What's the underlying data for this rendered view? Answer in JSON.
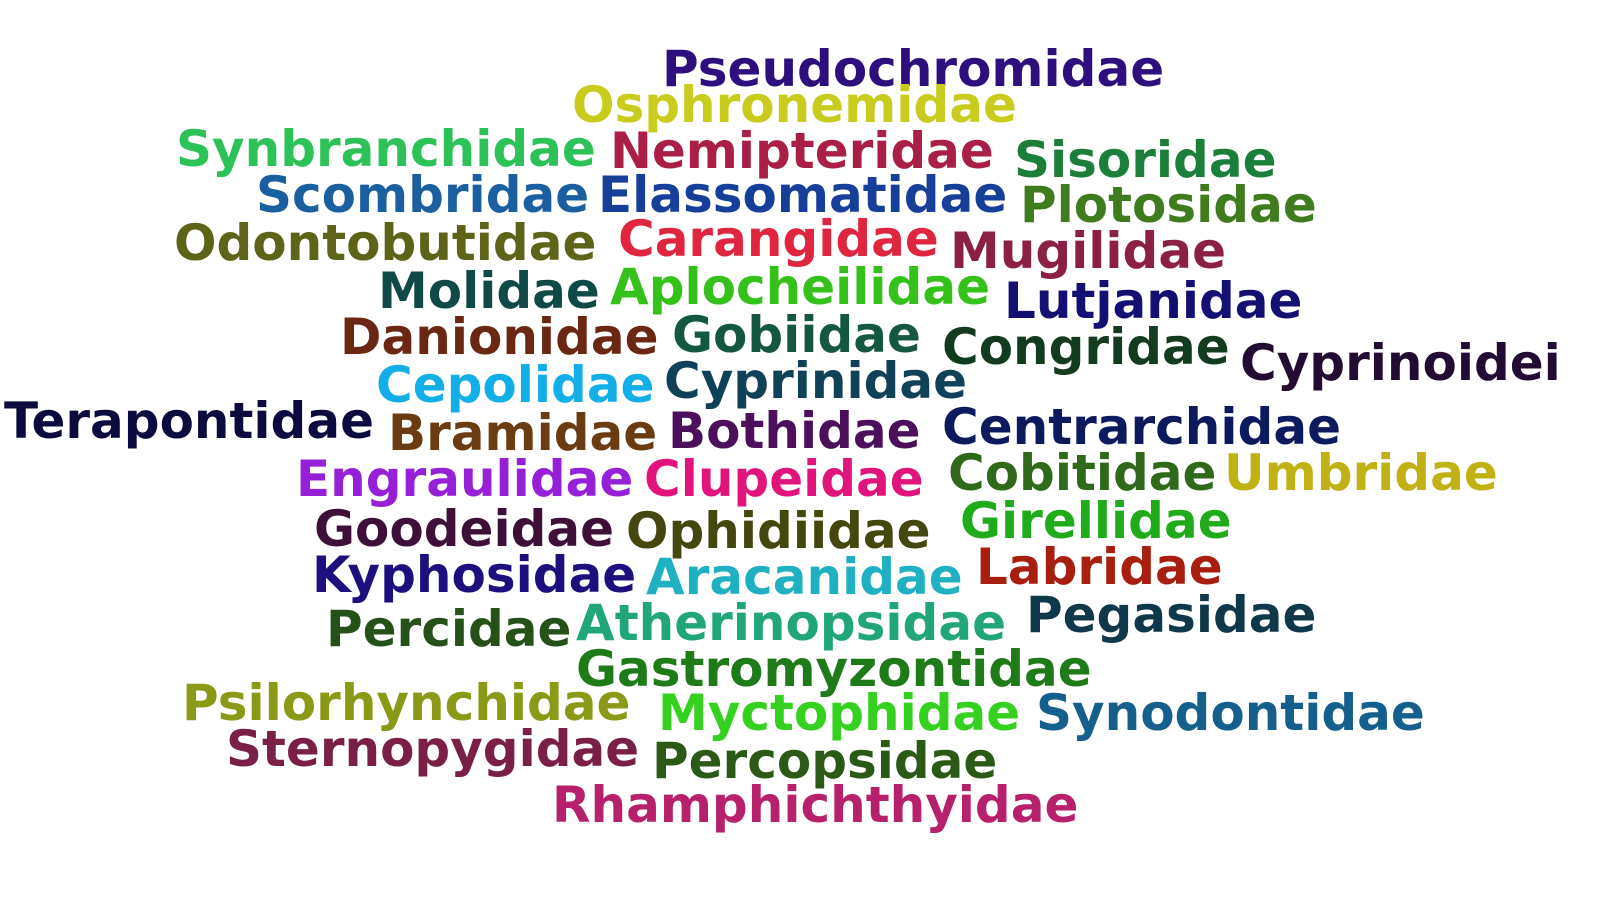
{
  "words": [
    {
      "text": "Pseudochromidae",
      "color": "#2e0f7e"
    },
    {
      "text": "Osphronemidae",
      "color": "#c7cc1d"
    },
    {
      "text": "Synbranchidae",
      "color": "#2cc257"
    },
    {
      "text": "Nemipteridae",
      "color": "#aa1f46"
    },
    {
      "text": "Sisoridae",
      "color": "#1b7f39"
    },
    {
      "text": "Scombridae",
      "color": "#1a5fa0"
    },
    {
      "text": "Elassomatidae",
      "color": "#163f99"
    },
    {
      "text": "Plotosidae",
      "color": "#3e7c1e"
    },
    {
      "text": "Odontobutidae",
      "color": "#5e6417"
    },
    {
      "text": "Carangidae",
      "color": "#e0253f"
    },
    {
      "text": "Mugilidae",
      "color": "#8c1f46"
    },
    {
      "text": "Molidae",
      "color": "#0f4a47"
    },
    {
      "text": "Aplocheilidae",
      "color": "#34c11a"
    },
    {
      "text": "Lutjanidae",
      "color": "#140f73"
    },
    {
      "text": "Danionidae",
      "color": "#6a2712"
    },
    {
      "text": "Gobiidae",
      "color": "#145844"
    },
    {
      "text": "Congridae",
      "color": "#123b1f"
    },
    {
      "text": "Cyprinoidei",
      "color": "#220c33"
    },
    {
      "text": "Cepolidae",
      "color": "#12aee8"
    },
    {
      "text": "Cyprinidae",
      "color": "#0f4159"
    },
    {
      "text": "Terapontidae",
      "color": "#0b0b3f"
    },
    {
      "text": "Bramidae",
      "color": "#6b3b12"
    },
    {
      "text": "Bothidae",
      "color": "#4b0f5c"
    },
    {
      "text": "Centrarchidae",
      "color": "#0d1b5e"
    },
    {
      "text": "Engraulidae",
      "color": "#9620d8"
    },
    {
      "text": "Clupeidae",
      "color": "#e0147a"
    },
    {
      "text": "Cobitidae",
      "color": "#2f6a1a"
    },
    {
      "text": "Umbridae",
      "color": "#c0b114"
    },
    {
      "text": "Goodeidae",
      "color": "#3e0f37"
    },
    {
      "text": "Ophidiidae",
      "color": "#44470e"
    },
    {
      "text": "Girellidae",
      "color": "#1fab1a"
    },
    {
      "text": "Kyphosidae",
      "color": "#1d0f7e"
    },
    {
      "text": "Aracanidae",
      "color": "#1fb0c1"
    },
    {
      "text": "Labridae",
      "color": "#a81f0f"
    },
    {
      "text": "Pegasidae",
      "color": "#0f384a"
    },
    {
      "text": "Percidae",
      "color": "#26521a"
    },
    {
      "text": "Atherinopsidae",
      "color": "#20a67a"
    },
    {
      "text": "Gastromyzontidae",
      "color": "#1f7a18"
    },
    {
      "text": "Psilorhynchidae",
      "color": "#8a9a17"
    },
    {
      "text": "Myctophidae",
      "color": "#34d11e"
    },
    {
      "text": "Synodontidae",
      "color": "#145f8c"
    },
    {
      "text": "Sternopygidae",
      "color": "#7a1f46"
    },
    {
      "text": "Percopsidae",
      "color": "#2a5a15"
    },
    {
      "text": "Rhamphichthyidae",
      "color": "#b7216b"
    }
  ]
}
